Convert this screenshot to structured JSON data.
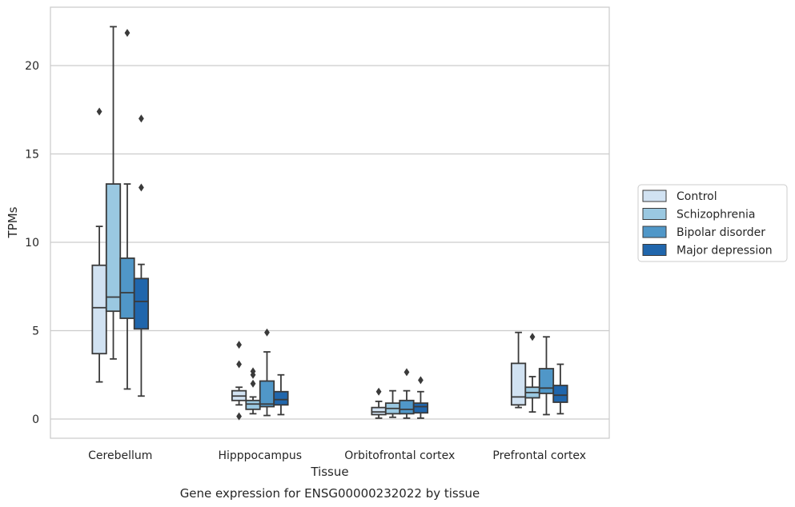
{
  "chart_data": {
    "type": "boxplot",
    "caption": "Gene expression for ENSG00000232022 by tissue",
    "xlabel": "Tissue",
    "ylabel": "TPMs",
    "ylim": [
      -1.1,
      23.4
    ],
    "yticks": [
      0,
      5,
      10,
      15,
      20
    ],
    "grid": true,
    "legend_position": "right",
    "categories": [
      "Cerebellum",
      "Hipppocampus",
      "Orbitofrontal cortex",
      "Prefrontal cortex"
    ],
    "series": [
      {
        "name": "Control",
        "color": "#d1e2f2",
        "boxes": [
          {
            "whislo": 2.1,
            "q1": 3.7,
            "med": 6.3,
            "q3": 8.7,
            "whishi": 10.9,
            "fliers": [
              17.4
            ]
          },
          {
            "whislo": 0.8,
            "q1": 1.05,
            "med": 1.3,
            "q3": 1.6,
            "whishi": 1.8,
            "fliers": [
              4.2,
              3.1,
              0.15
            ]
          },
          {
            "whislo": 0.05,
            "q1": 0.25,
            "med": 0.4,
            "q3": 0.65,
            "whishi": 1.0,
            "fliers": [
              1.55
            ]
          },
          {
            "whislo": 0.65,
            "q1": 0.8,
            "med": 1.25,
            "q3": 3.15,
            "whishi": 4.9,
            "fliers": []
          }
        ]
      },
      {
        "name": "Schizophrenia",
        "color": "#9ac8e1",
        "boxes": [
          {
            "whislo": 3.4,
            "q1": 6.1,
            "med": 6.9,
            "q3": 13.3,
            "whishi": 22.2,
            "fliers": []
          },
          {
            "whislo": 0.3,
            "q1": 0.55,
            "med": 0.85,
            "q3": 1.05,
            "whishi": 1.25,
            "fliers": [
              2.7,
              2.5,
              2.0
            ]
          },
          {
            "whislo": 0.1,
            "q1": 0.3,
            "med": 0.6,
            "q3": 0.9,
            "whishi": 1.6,
            "fliers": []
          },
          {
            "whislo": 0.4,
            "q1": 1.2,
            "med": 1.5,
            "q3": 1.8,
            "whishi": 2.4,
            "fliers": [
              4.65
            ]
          }
        ]
      },
      {
        "name": "Bipolar disorder",
        "color": "#5097c8",
        "boxes": [
          {
            "whislo": 1.7,
            "q1": 5.7,
            "med": 7.15,
            "q3": 9.1,
            "whishi": 13.3,
            "fliers": [
              21.85
            ]
          },
          {
            "whislo": 0.2,
            "q1": 0.7,
            "med": 0.85,
            "q3": 2.15,
            "whishi": 3.8,
            "fliers": [
              4.9
            ]
          },
          {
            "whislo": 0.05,
            "q1": 0.3,
            "med": 0.55,
            "q3": 1.05,
            "whishi": 1.6,
            "fliers": [
              2.65
            ]
          },
          {
            "whislo": 0.25,
            "q1": 1.45,
            "med": 1.75,
            "q3": 2.85,
            "whishi": 4.65,
            "fliers": []
          }
        ]
      },
      {
        "name": "Major depression",
        "color": "#2066ac",
        "boxes": [
          {
            "whislo": 1.3,
            "q1": 5.1,
            "med": 6.65,
            "q3": 7.95,
            "whishi": 8.75,
            "fliers": [
              17.0,
              13.1
            ]
          },
          {
            "whislo": 0.25,
            "q1": 0.8,
            "med": 1.1,
            "q3": 1.55,
            "whishi": 2.5,
            "fliers": []
          },
          {
            "whislo": 0.05,
            "q1": 0.35,
            "med": 0.7,
            "q3": 0.9,
            "whishi": 1.55,
            "fliers": [
              2.2
            ]
          },
          {
            "whislo": 0.3,
            "q1": 0.95,
            "med": 1.35,
            "q3": 1.9,
            "whishi": 3.1,
            "fliers": []
          }
        ]
      }
    ]
  }
}
